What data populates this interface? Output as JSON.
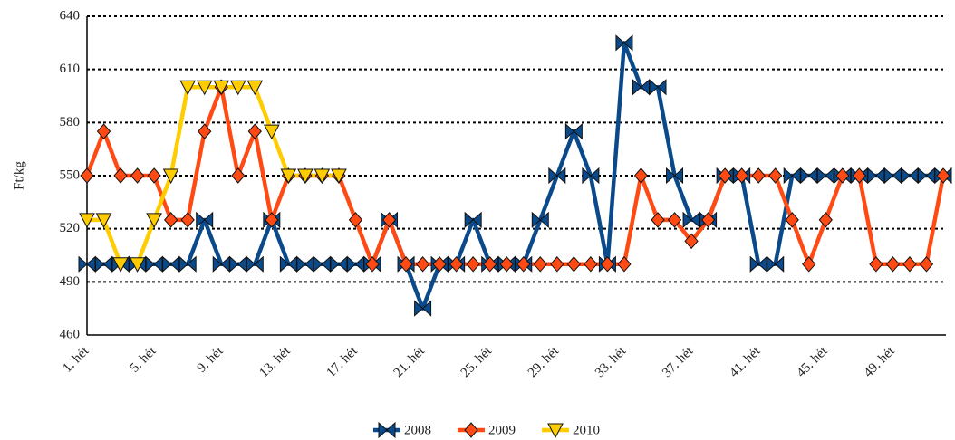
{
  "chart_data": {
    "type": "line",
    "y_label": "Ft/kg",
    "categories": [
      "1. hét",
      null,
      null,
      null,
      "5. hét",
      null,
      null,
      null,
      "9. hét",
      null,
      null,
      null,
      "13. hét",
      null,
      null,
      null,
      "17. hét",
      null,
      null,
      null,
      "21. hét",
      null,
      null,
      null,
      "25. hét",
      null,
      null,
      null,
      "29. hét",
      null,
      null,
      null,
      "33. hét",
      null,
      null,
      null,
      "37. hét",
      null,
      null,
      null,
      "41. hét",
      null,
      null,
      null,
      "45. hét",
      null,
      null,
      null,
      "49. hét",
      null,
      null,
      null
    ],
    "series": [
      {
        "name": "2008",
        "color": "#0b4a8a",
        "marker": "bowtie",
        "values": [
          500,
          500,
          500,
          500,
          500,
          500,
          500,
          525,
          500,
          500,
          500,
          525,
          500,
          500,
          500,
          500,
          500,
          500,
          525,
          500,
          475,
          500,
          500,
          525,
          500,
          500,
          500,
          525,
          550,
          575,
          550,
          500,
          625,
          600,
          600,
          550,
          525,
          525,
          550,
          550,
          500,
          500,
          550,
          550,
          550,
          550,
          550,
          550,
          550,
          550,
          550,
          550
        ]
      },
      {
        "name": "2009",
        "color": "#ff4a14",
        "marker": "diamond",
        "values": [
          550,
          575,
          550,
          550,
          550,
          525,
          525,
          575,
          600,
          550,
          575,
          525,
          550,
          550,
          550,
          550,
          525,
          500,
          525,
          500,
          500,
          500,
          500,
          500,
          500,
          500,
          500,
          500,
          500,
          500,
          500,
          500,
          500,
          550,
          525,
          525,
          513,
          525,
          550,
          550,
          550,
          550,
          525,
          500,
          525,
          550,
          550,
          500,
          500,
          500,
          500,
          550
        ]
      },
      {
        "name": "2010",
        "color": "#ffcc00",
        "marker": "triangle-down",
        "values": [
          525,
          525,
          500,
          500,
          525,
          550,
          600,
          600,
          600,
          600,
          600,
          575,
          550,
          550,
          550,
          550,
          null,
          null,
          null,
          null,
          null,
          null,
          null,
          null,
          null,
          null,
          null,
          null,
          null,
          null,
          null,
          null,
          null,
          null,
          null,
          null,
          null,
          null,
          null,
          null,
          null,
          null,
          null,
          null,
          null,
          null,
          null,
          null,
          null,
          null,
          null,
          null
        ]
      }
    ],
    "ylim": [
      460,
      640
    ],
    "yticks": [
      460,
      490,
      520,
      550,
      580,
      610,
      640
    ],
    "grid": true,
    "legend": "bottom"
  }
}
